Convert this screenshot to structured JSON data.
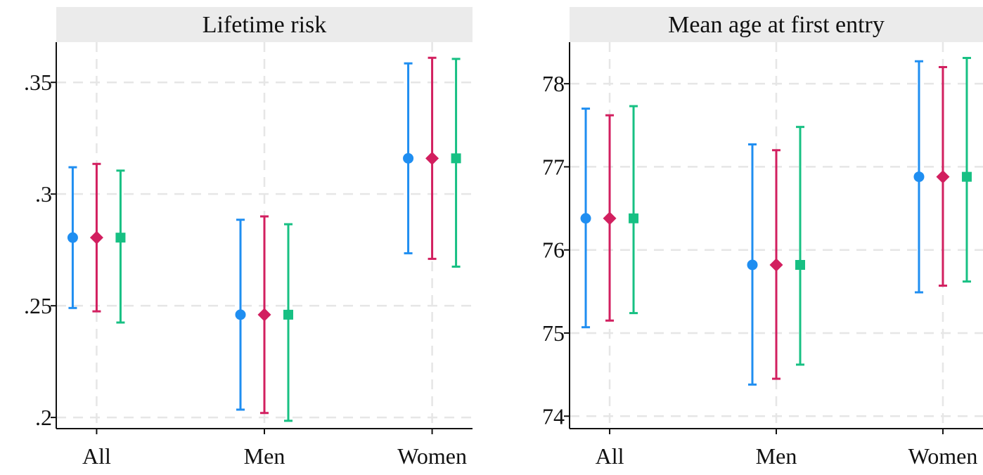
{
  "colors": {
    "series_blue": "#1f8ef1",
    "series_red": "#d21f5f",
    "series_green": "#17c083",
    "strip_bg": "#ebebeb",
    "grid": "#e6e6e6"
  },
  "chart_data": [
    {
      "type": "scatter",
      "title": "Lifetime risk",
      "categories": [
        "All",
        "Men",
        "Women"
      ],
      "ylim": [
        0.195,
        0.368
      ],
      "yticks": [
        0.2,
        0.25,
        0.3,
        0.35
      ],
      "ytick_labels": [
        ".2",
        ".25",
        ".3",
        ".35"
      ],
      "grid": true,
      "series": [
        {
          "marker": "circle",
          "color": "#1f8ef1",
          "points": [
            {
              "y": 0.2805,
              "lo": 0.249,
              "hi": 0.312
            },
            {
              "y": 0.246,
              "lo": 0.2035,
              "hi": 0.2885
            },
            {
              "y": 0.316,
              "lo": 0.2735,
              "hi": 0.3585
            }
          ]
        },
        {
          "marker": "diamond",
          "color": "#d21f5f",
          "points": [
            {
              "y": 0.2805,
              "lo": 0.2475,
              "hi": 0.3135
            },
            {
              "y": 0.246,
              "lo": 0.202,
              "hi": 0.29
            },
            {
              "y": 0.316,
              "lo": 0.271,
              "hi": 0.361
            }
          ]
        },
        {
          "marker": "square",
          "color": "#17c083",
          "points": [
            {
              "y": 0.2805,
              "lo": 0.2425,
              "hi": 0.3105
            },
            {
              "y": 0.246,
              "lo": 0.1985,
              "hi": 0.2865
            },
            {
              "y": 0.316,
              "lo": 0.2675,
              "hi": 0.3605
            }
          ]
        }
      ]
    },
    {
      "type": "scatter",
      "title": "Mean age at first entry",
      "categories": [
        "All",
        "Men",
        "Women"
      ],
      "ylim": [
        73.85,
        78.5
      ],
      "yticks": [
        74,
        75,
        76,
        77,
        78
      ],
      "ytick_labels": [
        "74",
        "75",
        "76",
        "77",
        "78"
      ],
      "grid": true,
      "series": [
        {
          "marker": "circle",
          "color": "#1f8ef1",
          "points": [
            {
              "y": 76.38,
              "lo": 75.07,
              "hi": 77.7
            },
            {
              "y": 75.82,
              "lo": 74.38,
              "hi": 77.27
            },
            {
              "y": 76.88,
              "lo": 75.49,
              "hi": 78.27
            }
          ]
        },
        {
          "marker": "diamond",
          "color": "#d21f5f",
          "points": [
            {
              "y": 76.38,
              "lo": 75.15,
              "hi": 77.62
            },
            {
              "y": 75.82,
              "lo": 74.45,
              "hi": 77.2
            },
            {
              "y": 76.88,
              "lo": 75.57,
              "hi": 78.2
            }
          ]
        },
        {
          "marker": "square",
          "color": "#17c083",
          "points": [
            {
              "y": 76.38,
              "lo": 75.24,
              "hi": 77.73
            },
            {
              "y": 75.82,
              "lo": 74.62,
              "hi": 77.48
            },
            {
              "y": 76.88,
              "lo": 75.62,
              "hi": 78.31
            }
          ]
        }
      ]
    }
  ]
}
